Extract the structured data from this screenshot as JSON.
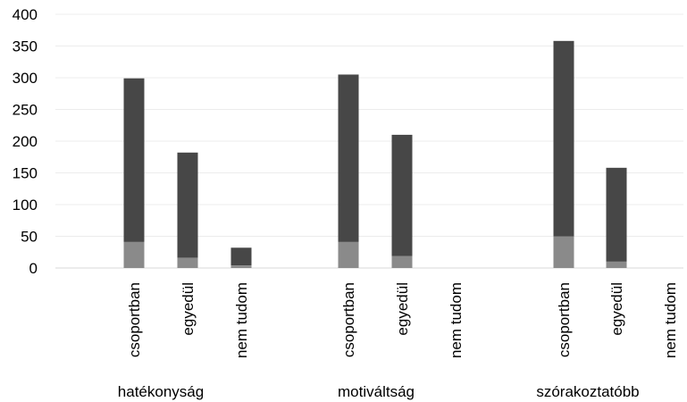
{
  "chart_data": {
    "type": "bar",
    "stacked": true,
    "title": "",
    "xlabel": "",
    "ylabel": "",
    "ylim": [
      0,
      400
    ],
    "y_ticks": [
      "0",
      "50",
      "100",
      "150",
      "200",
      "250",
      "300",
      "350",
      "400"
    ],
    "grid": true,
    "legend": "none",
    "groups": [
      {
        "name": "hatékonyság",
        "categories": [
          "csoportban",
          "egyedül",
          "nem tudom"
        ],
        "lower": [
          41,
          16,
          4
        ],
        "total": [
          299,
          182,
          32
        ]
      },
      {
        "name": "motiváltság",
        "categories": [
          "csoportban",
          "egyedül",
          "nem tudom"
        ],
        "lower": [
          41,
          19,
          0
        ],
        "total": [
          305,
          210,
          0
        ]
      },
      {
        "name": "szórakoztatóbb",
        "categories": [
          "csoportban",
          "egyedül",
          "nem tudom"
        ],
        "lower": [
          50,
          10,
          0
        ],
        "total": [
          358,
          158,
          0
        ]
      }
    ],
    "colors": {
      "lower": "#8a8a8a",
      "upper": "#474747"
    }
  }
}
